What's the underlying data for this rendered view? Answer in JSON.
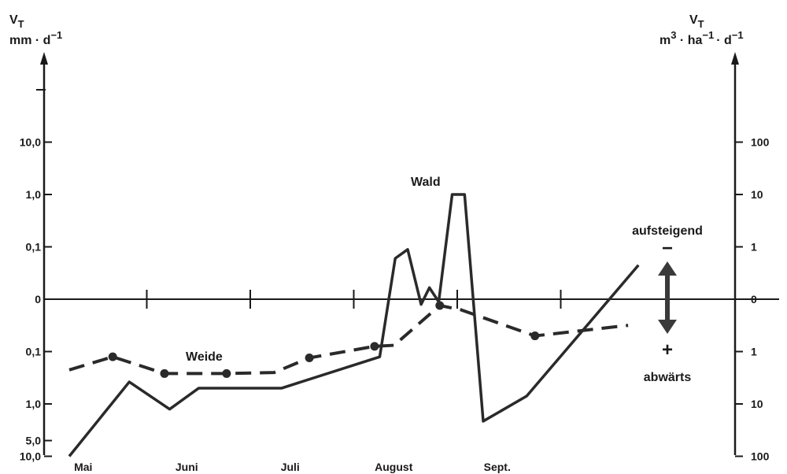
{
  "chart_data": {
    "type": "line",
    "left_axis": {
      "title": "V",
      "title_sub": "T",
      "unit": "mm · d",
      "unit_sup": "−1",
      "ticks": [
        {
          "label": "10,0",
          "level": 3
        },
        {
          "label": "1,0",
          "level": 2
        },
        {
          "label": "0,1",
          "level": 1
        },
        {
          "label": "0",
          "level": 0
        },
        {
          "label": "0,1",
          "level": -1
        },
        {
          "label": "1,0",
          "level": -2
        },
        {
          "label": "5,0",
          "level": -2.7
        },
        {
          "label": "10,0",
          "level": -3
        }
      ],
      "extra_tick_levels": [
        4
      ]
    },
    "right_axis": {
      "title": "V",
      "title_sub": "T",
      "unit_parts": [
        {
          "base": "m",
          "sup": "3"
        },
        {
          "base": " · ha",
          "sup": "−1"
        },
        {
          "base": "· d",
          "sup": "−1"
        }
      ],
      "ticks": [
        {
          "label": "100",
          "level": 3
        },
        {
          "label": "10",
          "level": 2
        },
        {
          "label": "1",
          "level": 1
        },
        {
          "label": "0",
          "level": 0
        },
        {
          "label": "1",
          "level": -1
        },
        {
          "label": "10",
          "level": -2
        },
        {
          "label": "100",
          "level": -3
        }
      ]
    },
    "x_axis": {
      "months": [
        "Mai",
        "Juni",
        "Juli",
        "August",
        "Sept."
      ],
      "month_centers": [
        0.5,
        1.5,
        2.5,
        3.5,
        4.5
      ],
      "tick_positions": [
        1,
        2,
        3,
        4,
        5
      ]
    },
    "series": [
      {
        "name": "Wald",
        "style": "solid",
        "points": [
          [
            0.0,
            -3.0
          ],
          [
            0.58,
            -1.58
          ],
          [
            0.97,
            -2.1
          ],
          [
            1.25,
            -1.7
          ],
          [
            1.6,
            -1.7
          ],
          [
            2.05,
            -1.7
          ],
          [
            3.0,
            -1.1
          ],
          [
            3.15,
            0.78
          ],
          [
            3.27,
            0.95
          ],
          [
            3.4,
            -0.1
          ],
          [
            3.48,
            0.22
          ],
          [
            3.57,
            -0.05
          ],
          [
            3.7,
            2.0
          ],
          [
            3.82,
            2.0
          ],
          [
            4.0,
            -2.33
          ],
          [
            4.42,
            -1.85
          ],
          [
            5.5,
            0.65
          ]
        ]
      },
      {
        "name": "Weide",
        "style": "dashed",
        "markers": true,
        "points": [
          [
            0.0,
            -1.35
          ],
          [
            0.42,
            -1.1
          ],
          [
            0.92,
            -1.42
          ],
          [
            1.23,
            -1.42
          ],
          [
            1.52,
            -1.42
          ],
          [
            1.98,
            -1.4
          ],
          [
            2.32,
            -1.12
          ],
          [
            2.95,
            -0.9
          ],
          [
            3.14,
            -0.88
          ],
          [
            3.58,
            -0.12
          ],
          [
            3.78,
            -0.2
          ],
          [
            4.5,
            -0.7
          ],
          [
            5.4,
            -0.5
          ]
        ]
      }
    ],
    "annotations": {
      "up_label": "aufsteigend",
      "up_symbol": "−",
      "down_label": "abwärts",
      "down_symbol": "+"
    },
    "grid": false
  }
}
